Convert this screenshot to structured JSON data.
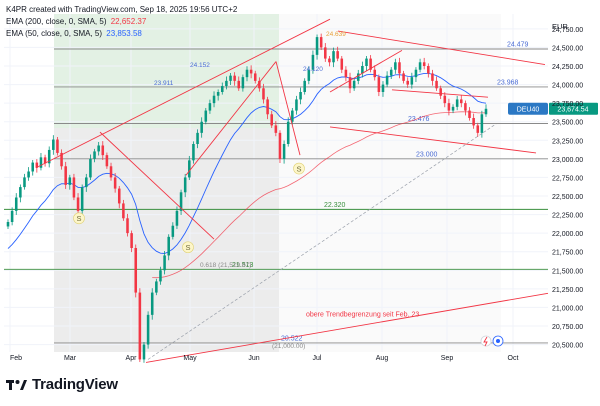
{
  "header": {
    "created_by": "K4PR created with TradingView.com, Sep 18, 2025 19:56 UTC+2",
    "ema200_label": "EMA (200, close, 0, SMA, 5)",
    "ema200_value": "22,652.37",
    "ema50_label": "EMA (50, close, 0, SMA, 5)",
    "ema50_value": "23,853.58"
  },
  "colors": {
    "ema200": "#f23645",
    "ema50": "#2962ff",
    "trend_red": "#f23645",
    "support_green": "#388e3c",
    "up_candle": "#089981",
    "down_candle": "#f23645",
    "highlight_green": "#e3f1e4",
    "highlight_gray": "#ececec"
  },
  "chart_data": {
    "type": "candlestick",
    "currency": "EUR",
    "symbol_badge": "DEU40",
    "last_price": "23,674.54",
    "ylim": [
      20400,
      24950
    ],
    "x_ticks": [
      "Feb",
      "Mar",
      "Apr",
      "May",
      "Jun",
      "Jul",
      "Aug",
      "Sep",
      "Oct"
    ],
    "y_ticks": [
      "24,750.00",
      "24,500.00",
      "24,250.00",
      "24,000.00",
      "23,750.00",
      "23,500.00",
      "23,250.00",
      "23,000.00",
      "22,750.00",
      "22,500.00",
      "22,250.00",
      "22,000.00",
      "21,750.00",
      "21,500.00",
      "21,250.00",
      "21,000.00",
      "20,750.00",
      "20,500.00"
    ],
    "horizontal_levels": [
      {
        "value": 24479,
        "label": "24.479",
        "color": "gray"
      },
      {
        "value": 23968,
        "label": "23.968",
        "color": "gray"
      },
      {
        "value": 23476,
        "label": "23.476",
        "color": "gray"
      },
      {
        "value": 23000,
        "label": "23.000",
        "color": "gray"
      },
      {
        "value": 22320,
        "label": "22.320",
        "color": "green"
      },
      {
        "value": 21513,
        "label": "21.513",
        "color": "green"
      },
      {
        "value": 20522,
        "label": "20.522",
        "color": "gray"
      }
    ],
    "price_annotations": [
      {
        "label": "24.639",
        "value": 24639
      },
      {
        "label": "24.152",
        "value": 24152
      },
      {
        "label": "23.911",
        "value": 23911
      },
      {
        "label": "24.120",
        "value": 24120
      }
    ],
    "fib_label": "0.618 (21,519.87)",
    "fib_label_low": "(21,000.00)",
    "trend_text": "obere Trendbegrenzung seit Feb. 23",
    "s_markers": [
      "S",
      "S",
      "S"
    ],
    "closes": [
      22150,
      22300,
      22480,
      22620,
      22750,
      22830,
      22950,
      22880,
      23020,
      22940,
      23120,
      23260,
      23080,
      22900,
      22650,
      22750,
      22480,
      22300,
      22620,
      22750,
      23000,
      23100,
      23180,
      23050,
      22900,
      22750,
      22600,
      22400,
      22200,
      22000,
      21800,
      21200,
      20300,
      20500,
      20900,
      21200,
      21350,
      21500,
      21700,
      21950,
      22100,
      22300,
      22550,
      22750,
      22980,
      23200,
      23350,
      23500,
      23650,
      23750,
      23850,
      23900,
      23980,
      24050,
      24120,
      24050,
      23950,
      24100,
      24200,
      24150,
      24050,
      23950,
      23800,
      23600,
      23450,
      23350,
      23000,
      23200,
      23500,
      23650,
      23800,
      23900,
      24050,
      24200,
      24400,
      24639,
      24500,
      24350,
      24300,
      24450,
      24350,
      24200,
      24100,
      23950,
      24050,
      24150,
      24250,
      24350,
      24200,
      24100,
      23900,
      24000,
      24120,
      24200,
      24300,
      24150,
      24050,
      24000,
      24100,
      24200,
      24300,
      24250,
      24150,
      24050,
      23950,
      23850,
      23750,
      23650,
      23700,
      23800,
      23750,
      23650,
      23550,
      23450,
      23350,
      23600,
      23674
    ]
  },
  "footer": {
    "brand": "TradingView"
  }
}
